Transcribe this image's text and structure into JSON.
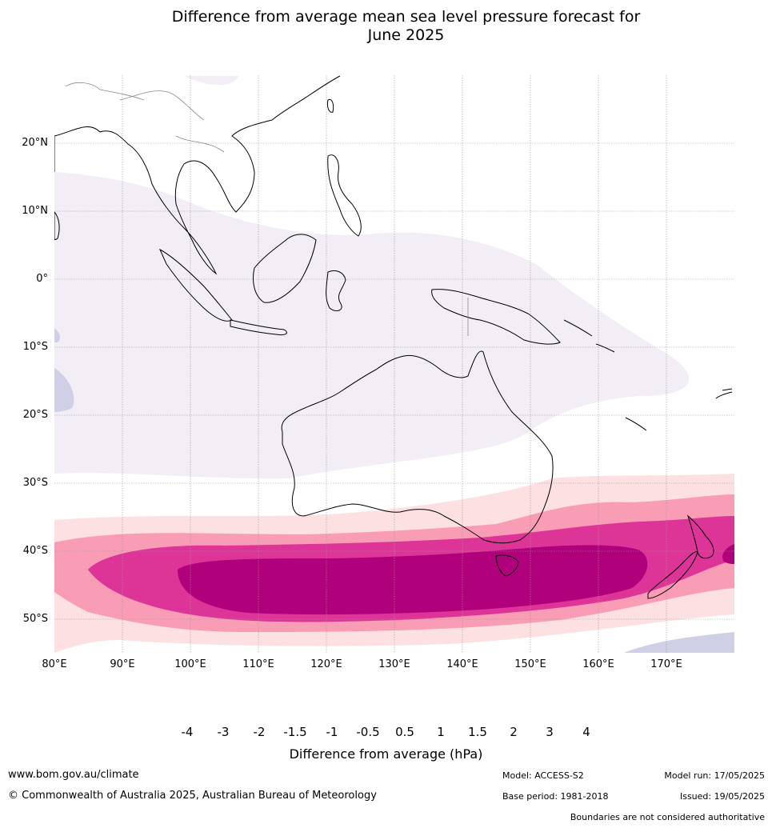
{
  "title": {
    "line1": "Difference from average mean sea level pressure forecast for",
    "line2": "June 2025"
  },
  "map": {
    "lat_labels": [
      "20°N",
      "10°N",
      "0°",
      "10°S",
      "20°S",
      "30°S",
      "40°S",
      "50°S"
    ],
    "lon_labels": [
      "80°E",
      "90°E",
      "100°E",
      "110°E",
      "120°E",
      "130°E",
      "140°E",
      "150°E",
      "160°E",
      "170°E"
    ]
  },
  "colorbar": {
    "ticks": [
      "-4",
      "-3",
      "-2",
      "-1.5",
      "-1",
      "-0.5",
      "0.5",
      "1",
      "1.5",
      "2",
      "3",
      "4"
    ],
    "colors": [
      "#1b8f9a",
      "#66aad0",
      "#a3b4d6",
      "#cfd0e6",
      "#f3edf5",
      "#ffffff",
      "#fde0e1",
      "#f99cb5",
      "#dc3597",
      "#b0007b",
      "#7a0077"
    ],
    "low_extend_color": "#0a6b5b",
    "high_extend_color": "#4b005f",
    "label": "Difference from average (hPa)"
  },
  "footer": {
    "website": "www.bom.gov.au/climate",
    "copyright": "© Commonwealth of Australia 2025, Australian Bureau of Meteorology",
    "model": "Model: ACCESS-S2",
    "base_period": "Base period: 1981-2018",
    "model_run": "Model run: 17/05/2025",
    "issued": "Issued: 19/05/2025",
    "disclaimer": "Boundaries are not considered authoritative"
  }
}
